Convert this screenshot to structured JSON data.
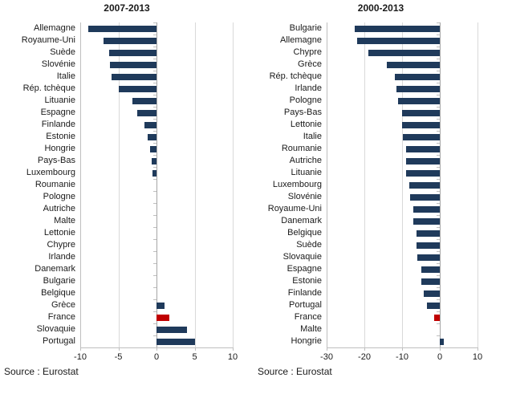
{
  "chart_data": [
    {
      "type": "bar",
      "orientation": "horizontal",
      "title": "2007-2013",
      "source": "Source : Eurostat",
      "xlabel": "",
      "ylabel": "",
      "xlim": [
        -10,
        10
      ],
      "xticks": [
        -10,
        -5,
        0,
        5,
        10
      ],
      "grid": true,
      "legend": false,
      "bar_color": "#1f3a5b",
      "highlight_color": "#c00000",
      "highlight_category": "France",
      "categories": [
        "Allemagne",
        "Royaume-Uni",
        "Suède",
        "Slovénie",
        "Italie",
        "Rép. tchèque",
        "Lituanie",
        "Espagne",
        "Finlande",
        "Estonie",
        "Hongrie",
        "Pays-Bas",
        "Luxembourg",
        "Roumanie",
        "Pologne",
        "Autriche",
        "Malte",
        "Lettonie",
        "Chypre",
        "Irlande",
        "Danemark",
        "Bulgarie",
        "Belgique",
        "Grèce",
        "France",
        "Slovaquie",
        "Portugal"
      ],
      "values": [
        -9,
        -7,
        -6.2,
        -6.1,
        -5.9,
        -5,
        -3.2,
        -2.5,
        -1.6,
        -1.2,
        -0.8,
        -0.6,
        -0.5,
        0,
        0,
        0,
        0,
        0,
        0,
        0,
        0,
        0,
        0,
        1,
        1.7,
        4,
        5
      ]
    },
    {
      "type": "bar",
      "orientation": "horizontal",
      "title": "2000-2013",
      "source": "Source : Eurostat",
      "xlabel": "",
      "ylabel": "",
      "xlim": [
        -30,
        10
      ],
      "xticks": [
        -30,
        -20,
        -10,
        0,
        10
      ],
      "grid": true,
      "legend": false,
      "bar_color": "#1f3a5b",
      "highlight_color": "#c00000",
      "highlight_category": "France",
      "categories": [
        "Bulgarie",
        "Allemagne",
        "Chypre",
        "Grèce",
        "Rép. tchèque",
        "Irlande",
        "Pologne",
        "Pays-Bas",
        "Lettonie",
        "Italie",
        "Roumanie",
        "Autriche",
        "Lituanie",
        "Luxembourg",
        "Slovénie",
        "Royaume-Uni",
        "Danemark",
        "Belgique",
        "Suède",
        "Slovaquie",
        "Espagne",
        "Estonie",
        "Finlande",
        "Portugal",
        "France",
        "Malte",
        "Hongrie"
      ],
      "values": [
        -22.5,
        -22,
        -19,
        -14,
        -12,
        -11.5,
        -11,
        -10,
        -9.9,
        -9.8,
        -9,
        -9,
        -8.9,
        -8,
        -7.9,
        -7.1,
        -7,
        -6.2,
        -6.1,
        -6,
        -5,
        -4.9,
        -4.3,
        -3.4,
        -1.5,
        0,
        1
      ]
    }
  ]
}
